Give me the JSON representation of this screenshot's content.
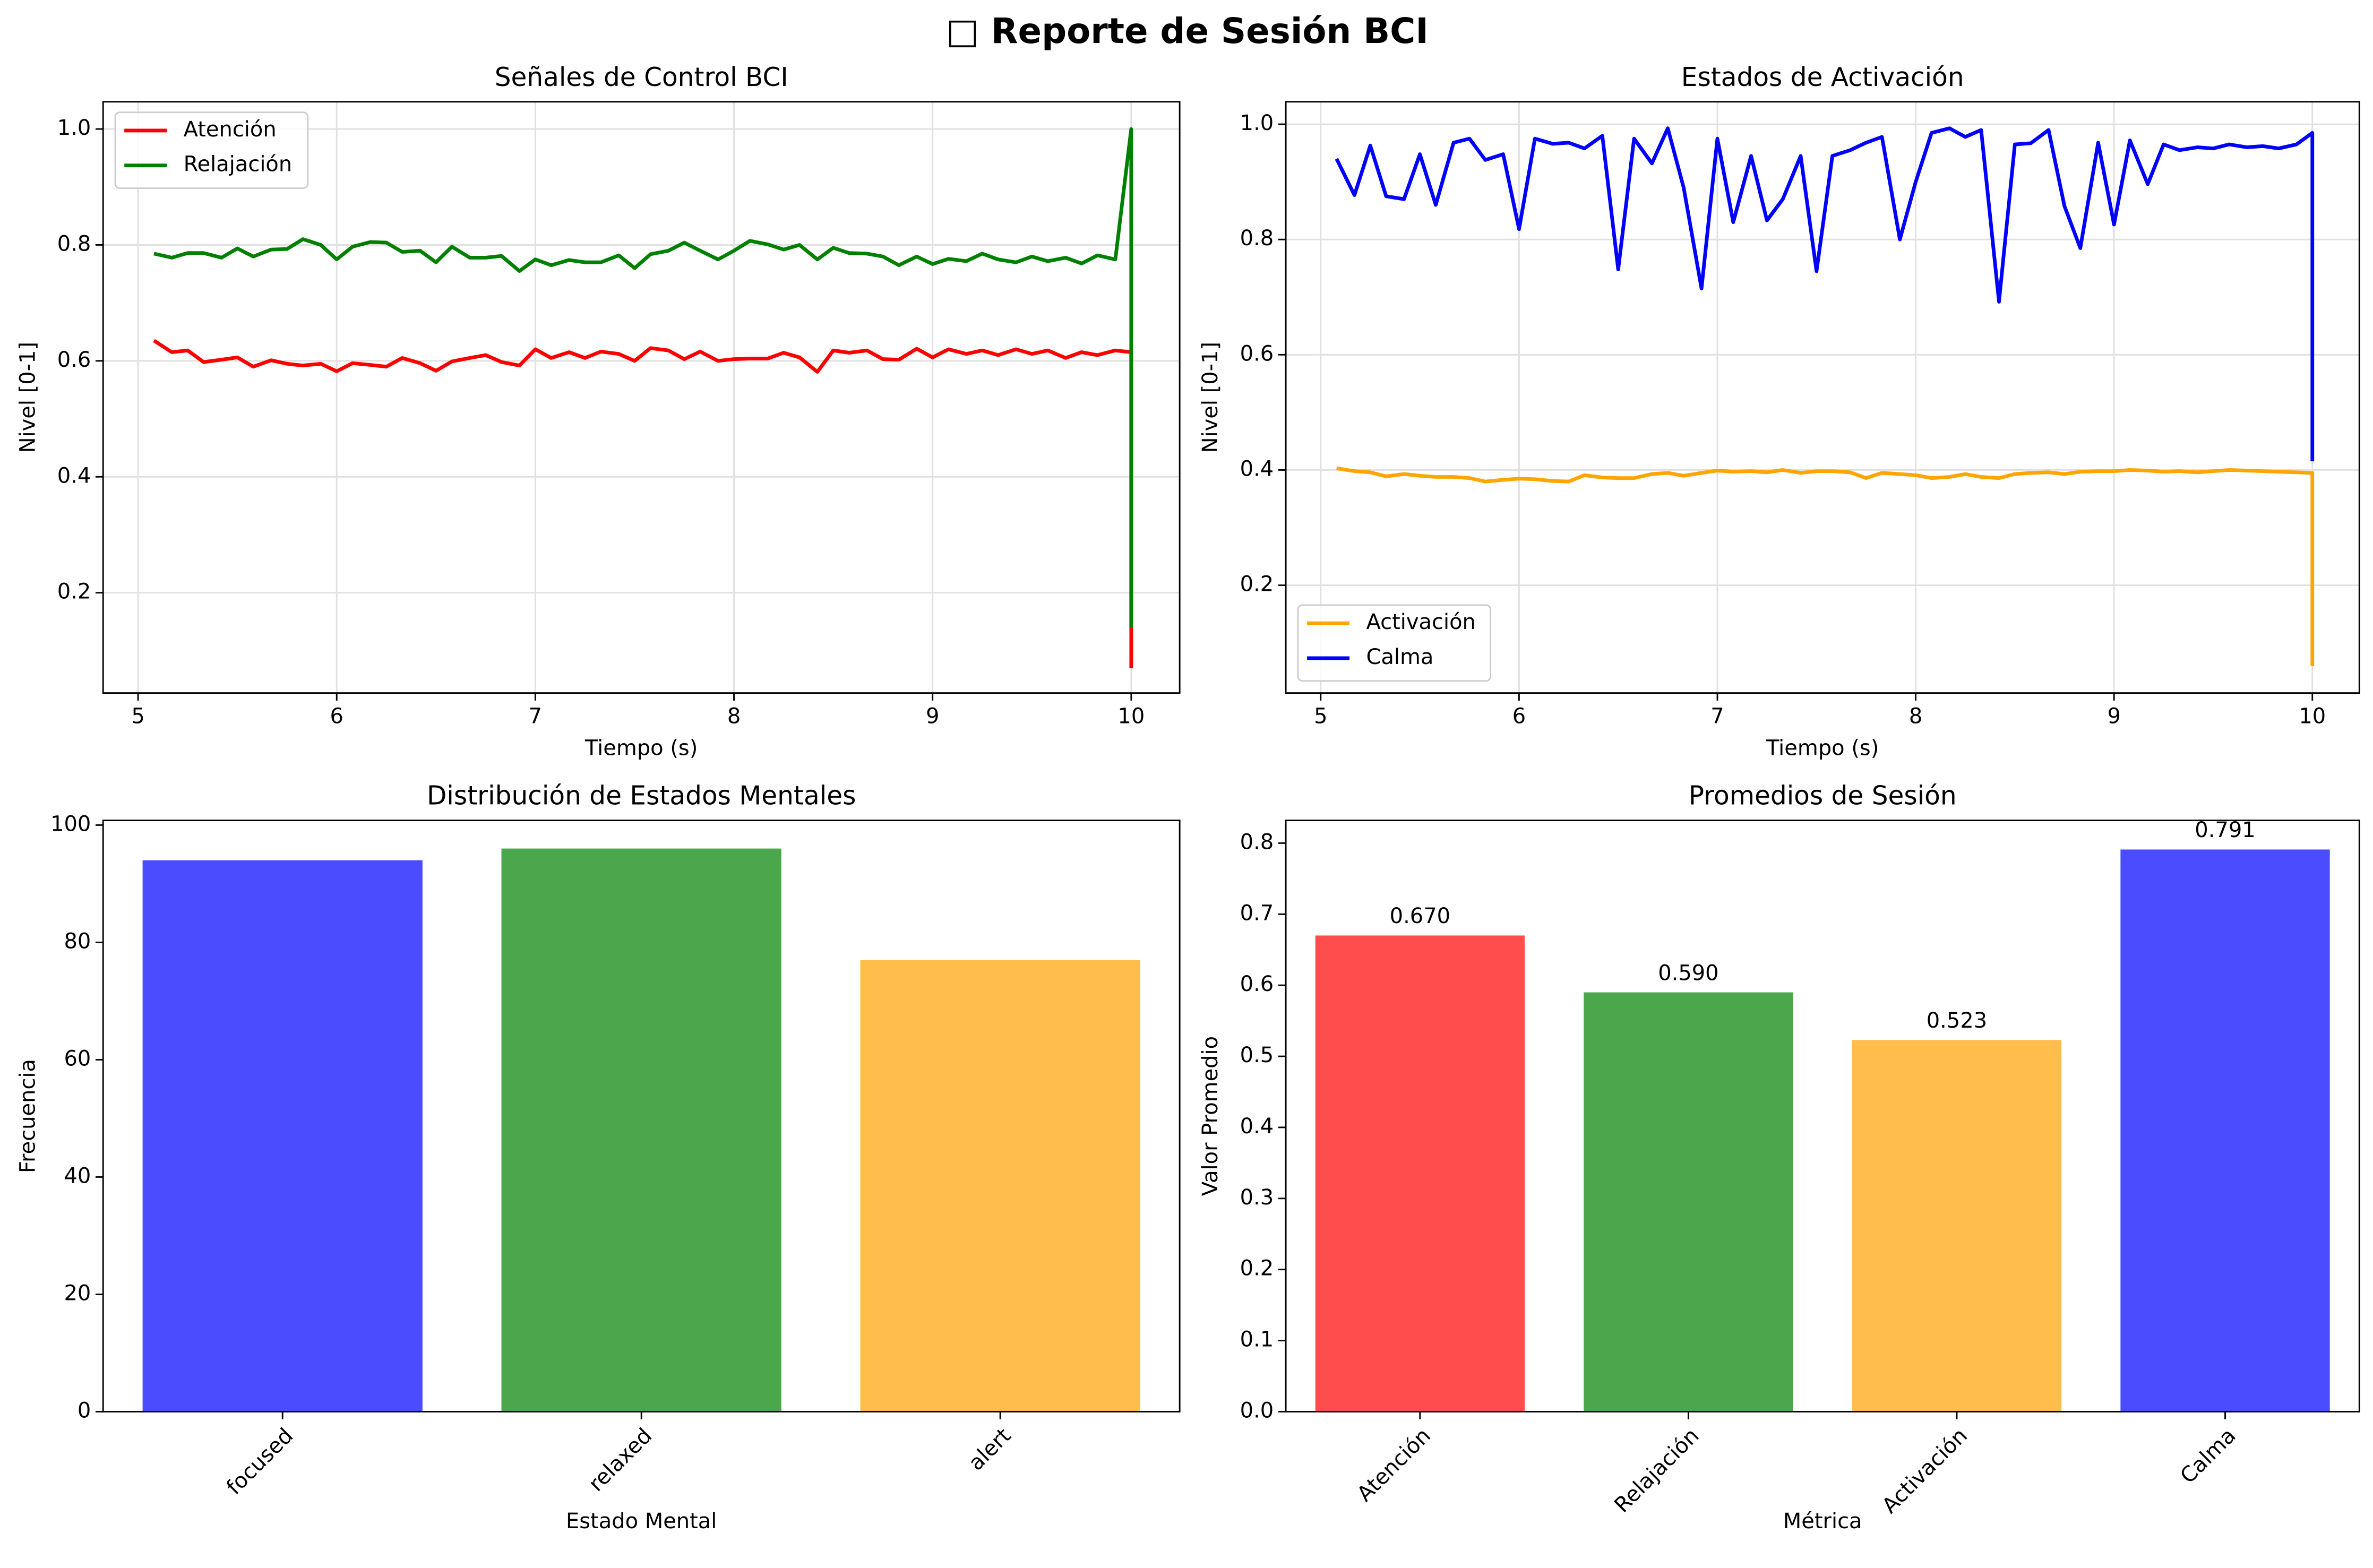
{
  "title": "□ Reporte de Sesión BCI",
  "chart_data": [
    {
      "type": "line",
      "title": "Señales de Control BCI",
      "xlabel": "Tiempo (s)",
      "ylabel": "Nivel [0-1]",
      "x": [
        5.08,
        5.17,
        5.25,
        5.33,
        5.42,
        5.5,
        5.58,
        5.67,
        5.75,
        5.83,
        5.92,
        6.0,
        6.08,
        6.17,
        6.25,
        6.33,
        6.42,
        6.5,
        6.58,
        6.67,
        6.75,
        6.83,
        6.92,
        7.0,
        7.08,
        7.17,
        7.25,
        7.33,
        7.42,
        7.5,
        7.58,
        7.67,
        7.75,
        7.83,
        7.92,
        8.0,
        8.08,
        8.17,
        8.25,
        8.33,
        8.42,
        8.5,
        8.58,
        8.67,
        8.75,
        8.83,
        8.92,
        9.0,
        9.08,
        9.17,
        9.25,
        9.33,
        9.42,
        9.5,
        9.58,
        9.67,
        9.75,
        9.83,
        9.92,
        10.0,
        10.0
      ],
      "series": [
        {
          "name": "Atención",
          "color": "#ff0000",
          "values": [
            0.635,
            0.615,
            0.618,
            0.598,
            0.602,
            0.606,
            0.59,
            0.601,
            0.595,
            0.592,
            0.595,
            0.582,
            0.596,
            0.593,
            0.59,
            0.605,
            0.596,
            0.583,
            0.599,
            0.605,
            0.61,
            0.598,
            0.592,
            0.62,
            0.605,
            0.615,
            0.605,
            0.616,
            0.612,
            0.6,
            0.622,
            0.618,
            0.603,
            0.616,
            0.6,
            0.603,
            0.604,
            0.604,
            0.614,
            0.606,
            0.581,
            0.618,
            0.614,
            0.618,
            0.603,
            0.602,
            0.621,
            0.606,
            0.62,
            0.612,
            0.618,
            0.61,
            0.62,
            0.612,
            0.618,
            0.605,
            0.615,
            0.61,
            0.618,
            0.615,
            0.07
          ]
        },
        {
          "name": "Relajación",
          "color": "#008000",
          "values": [
            0.785,
            0.778,
            0.786,
            0.786,
            0.778,
            0.794,
            0.78,
            0.792,
            0.793,
            0.81,
            0.8,
            0.775,
            0.797,
            0.805,
            0.804,
            0.788,
            0.79,
            0.77,
            0.797,
            0.778,
            0.778,
            0.781,
            0.755,
            0.775,
            0.765,
            0.774,
            0.77,
            0.77,
            0.782,
            0.76,
            0.784,
            0.79,
            0.804,
            0.79,
            0.775,
            0.79,
            0.807,
            0.801,
            0.792,
            0.8,
            0.775,
            0.795,
            0.786,
            0.785,
            0.78,
            0.765,
            0.78,
            0.767,
            0.776,
            0.772,
            0.785,
            0.775,
            0.77,
            0.78,
            0.772,
            0.778,
            0.768,
            0.782,
            0.775,
            1.0,
            0.14
          ]
        }
      ],
      "xlim": [
        4.824,
        10.244
      ],
      "xticks": [
        5,
        6,
        7,
        8,
        9,
        10
      ],
      "ylim": [
        0.027,
        1.047
      ],
      "yticks": [
        0.2,
        0.4,
        0.6,
        0.8,
        {
          "value": 1,
          "label": "1.0"
        }
      ],
      "grid": true,
      "legend": "upper left"
    },
    {
      "type": "line",
      "title": "Estados de Activación",
      "xlabel": "Tiempo (s)",
      "ylabel": "Nivel [0-1]",
      "x": [
        5.08,
        5.17,
        5.25,
        5.33,
        5.42,
        5.5,
        5.58,
        5.67,
        5.75,
        5.83,
        5.92,
        6.0,
        6.08,
        6.17,
        6.25,
        6.33,
        6.42,
        6.5,
        6.58,
        6.67,
        6.75,
        6.83,
        6.92,
        7.0,
        7.08,
        7.17,
        7.25,
        7.33,
        7.42,
        7.5,
        7.58,
        7.67,
        7.75,
        7.83,
        7.92,
        8.0,
        8.08,
        8.17,
        8.25,
        8.33,
        8.42,
        8.5,
        8.58,
        8.67,
        8.75,
        8.83,
        8.92,
        9.0,
        9.08,
        9.17,
        9.25,
        9.33,
        9.42,
        9.5,
        9.58,
        9.67,
        9.75,
        9.83,
        9.92,
        10.0,
        10.0
      ],
      "series": [
        {
          "name": "Activación",
          "color": "#ffa500",
          "values": [
            0.403,
            0.398,
            0.396,
            0.389,
            0.393,
            0.39,
            0.388,
            0.388,
            0.386,
            0.38,
            0.383,
            0.385,
            0.384,
            0.381,
            0.38,
            0.391,
            0.387,
            0.386,
            0.386,
            0.393,
            0.395,
            0.39,
            0.395,
            0.399,
            0.397,
            0.398,
            0.396,
            0.4,
            0.395,
            0.398,
            0.398,
            0.396,
            0.386,
            0.395,
            0.393,
            0.391,
            0.386,
            0.388,
            0.393,
            0.388,
            0.386,
            0.393,
            0.395,
            0.396,
            0.393,
            0.397,
            0.398,
            0.398,
            0.4,
            0.399,
            0.397,
            0.398,
            0.396,
            0.398,
            0.4,
            0.399,
            0.398,
            0.397,
            0.396,
            0.395,
            0.06
          ]
        },
        {
          "name": "Calma",
          "color": "#0000ff",
          "values": [
            0.94,
            0.877,
            0.963,
            0.875,
            0.87,
            0.948,
            0.86,
            0.968,
            0.975,
            0.938,
            0.948,
            0.818,
            0.975,
            0.966,
            0.968,
            0.958,
            0.98,
            0.748,
            0.975,
            0.932,
            0.993,
            0.89,
            0.715,
            0.975,
            0.83,
            0.945,
            0.833,
            0.87,
            0.945,
            0.745,
            0.945,
            0.955,
            0.968,
            0.978,
            0.8,
            0.9,
            0.985,
            0.993,
            0.978,
            0.99,
            0.692,
            0.965,
            0.967,
            0.99,
            0.858,
            0.785,
            0.968,
            0.826,
            0.972,
            0.896,
            0.965,
            0.955,
            0.96,
            0.958,
            0.965,
            0.96,
            0.962,
            0.958,
            0.965,
            0.985,
            0.415
          ]
        }
      ],
      "xlim": [
        4.824,
        10.237
      ],
      "xticks": [
        5,
        6,
        7,
        8,
        9,
        10
      ],
      "ylim": [
        0.013,
        1.039
      ],
      "yticks": [
        0.2,
        0.4,
        0.6,
        0.8,
        {
          "value": 1,
          "label": "1.0"
        }
      ],
      "grid": true,
      "legend": "lower left"
    },
    {
      "type": "bar",
      "title": "Distribución de Estados Mentales",
      "xlabel": "Estado Mental",
      "ylabel": "Frecuencia",
      "categories": [
        "focused",
        "relaxed",
        "alert"
      ],
      "values": [
        94,
        96,
        77
      ],
      "colors": [
        "#4c4cff",
        "#4ca64c",
        "#ffbe4c"
      ],
      "ylim": [
        0,
        100.8
      ],
      "yticks": [
        0,
        20,
        40,
        60,
        80,
        100
      ],
      "grid": false
    },
    {
      "type": "bar",
      "title": "Promedios de Sesión",
      "xlabel": "Métrica",
      "ylabel": "Valor Promedio",
      "categories": [
        "Atención",
        "Relajación",
        "Activación",
        "Calma"
      ],
      "values": [
        0.67,
        0.59,
        0.523,
        0.791
      ],
      "value_labels": [
        "0.670",
        "0.590",
        "0.523",
        "0.791"
      ],
      "colors": [
        "#ff4c4c",
        "#4ca64c",
        "#ffbe4c",
        "#4c4cff"
      ],
      "ylim": [
        0,
        0.832
      ],
      "yticks": [
        {
          "value": 0,
          "label": "0.0"
        },
        0.1,
        0.2,
        0.3,
        0.4,
        0.5,
        0.6,
        0.7,
        0.8
      ],
      "grid": false
    }
  ]
}
